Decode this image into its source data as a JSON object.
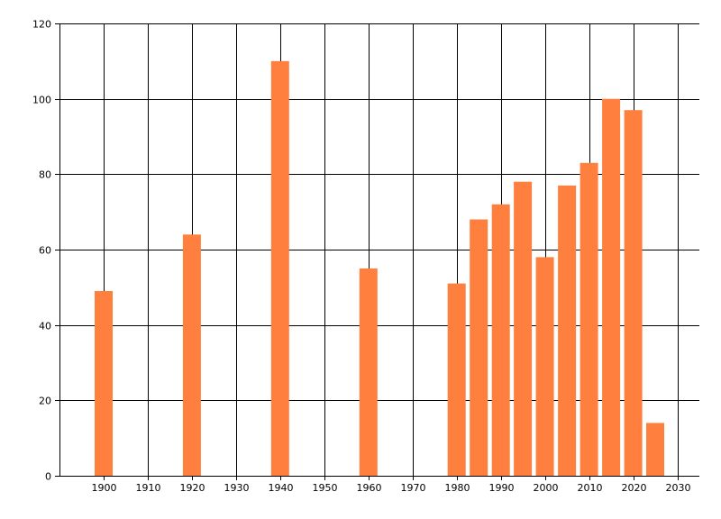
{
  "chart_data": {
    "type": "bar",
    "title": "",
    "xlabel": "",
    "ylabel": "",
    "x": [
      1900,
      1920,
      1940,
      1960,
      1980,
      1985,
      1990,
      1995,
      2000,
      2005,
      2010,
      2015,
      2020,
      2025
    ],
    "values": [
      49,
      64,
      110,
      55,
      51,
      68,
      72,
      78,
      58,
      77,
      83,
      100,
      97,
      14
    ],
    "bar_color": "#FF7F3F",
    "xlim": [
      1890,
      2035
    ],
    "ylim": [
      0,
      120
    ],
    "xticks": [
      "1900",
      "1910",
      "1920",
      "1930",
      "1940",
      "1950",
      "1960",
      "1970",
      "1980",
      "1990",
      "2000",
      "2010",
      "2020",
      "2030"
    ],
    "yticks": [
      "0",
      "20",
      "40",
      "60",
      "80",
      "100",
      "120"
    ],
    "grid": true,
    "legend": "none"
  }
}
